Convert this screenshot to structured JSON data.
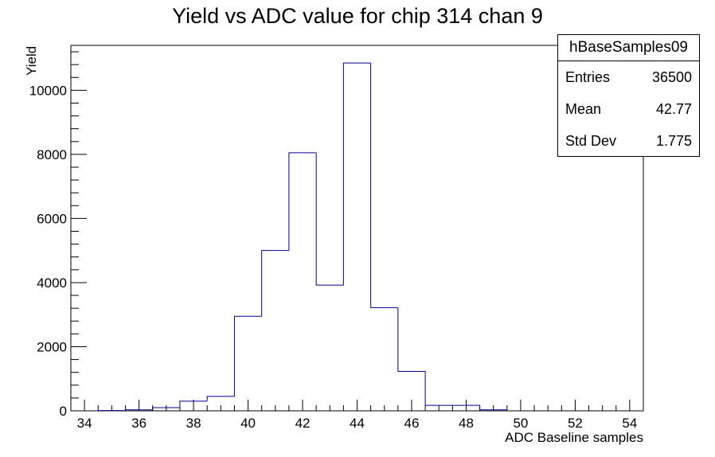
{
  "chart_data": {
    "type": "histogram",
    "title": "Yield vs ADC value for chip 314 chan 9",
    "xlabel": "ADC Baseline samples",
    "ylabel": "Yield",
    "xlim": [
      33.5,
      54.5
    ],
    "ylim": [
      0,
      11400
    ],
    "x_ticks": [
      34,
      36,
      38,
      40,
      42,
      44,
      46,
      48,
      50,
      52,
      54
    ],
    "y_ticks": [
      0,
      2000,
      4000,
      6000,
      8000,
      10000
    ],
    "bin_width": 1,
    "bins": [
      35,
      36,
      37,
      38,
      39,
      40,
      41,
      42,
      43,
      44,
      45,
      46,
      47,
      48,
      49
    ],
    "values": [
      10,
      30,
      100,
      300,
      450,
      2950,
      5000,
      8050,
      3920,
      10850,
      3220,
      1230,
      170,
      170,
      30
    ],
    "line_color": "#00008b",
    "grid": false
  },
  "stats": {
    "name": "hBaseSamples09",
    "rows": [
      {
        "label": "Entries",
        "value": "36500"
      },
      {
        "label": "Mean",
        "value": "42.77"
      },
      {
        "label": "Std Dev",
        "value": "1.775"
      }
    ]
  }
}
